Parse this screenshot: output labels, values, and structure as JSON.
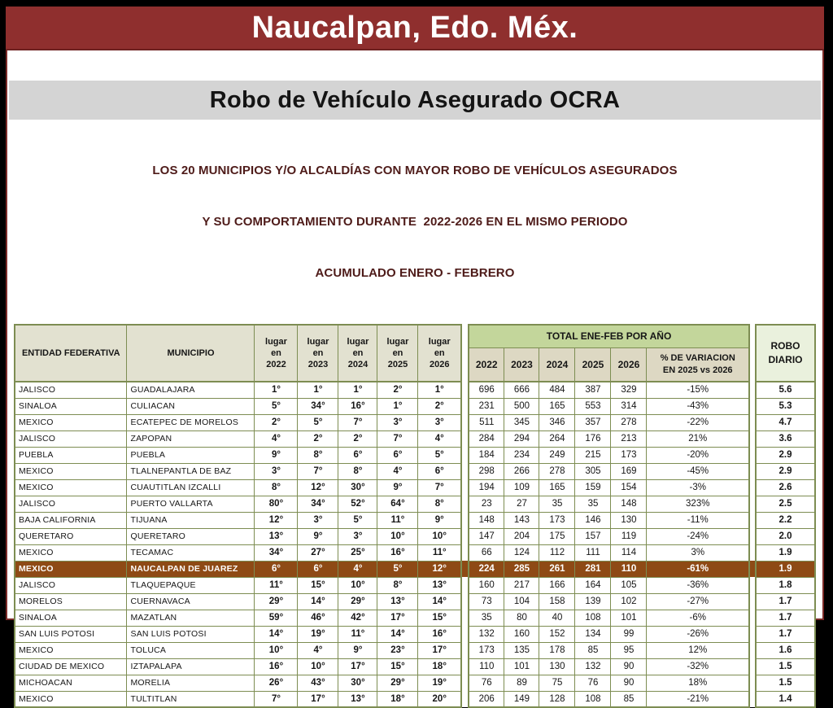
{
  "banner": {
    "title": "Naucalpan, Edo. Méx."
  },
  "section": {
    "title": "Robo de Vehículo Asegurado OCRA"
  },
  "description": {
    "line1": "LOS 20 MUNICIPIOS Y/O ALCALDÍAS CON MAYOR ROBO DE VEHÍCULOS ASEGURADOS",
    "line2": "Y SU COMPORTAMIENTO DURANTE  2022-2026 EN EL MISMO PERIODO",
    "line3": "ACUMULADO ENERO - FEBRERO"
  },
  "colors": {
    "banner_red": "#8f2f2e",
    "section_bar_gray": "#d4d4d4",
    "description_maroon": "#4e1b19",
    "table_border_olive": "#7d8d52",
    "header_beige": "#e2e1d0",
    "header_tan": "#ddd8c3",
    "header_green": "#c3d69b",
    "header_light_green": "#eaf1dd",
    "highlight_brown": "#8e4a15"
  },
  "table": {
    "years": [
      "2022",
      "2023",
      "2024",
      "2025",
      "2026"
    ],
    "headers": {
      "entidad": "ENTIDAD FEDERATIVA",
      "municipio": "MUNICIPIO",
      "lugar_word": "lugar",
      "en_word": "en",
      "total": "TOTAL ENE-FEB POR AÑO",
      "variacion_line1": "% DE VARIACION",
      "variacion_line2": "EN 2025 vs 2026",
      "robo_line1": "ROBO",
      "robo_line2": "DIARIO"
    },
    "rows": [
      {
        "entidad": "JALISCO",
        "municipio": "GUADALAJARA",
        "lugar": [
          "1°",
          "1°",
          "1°",
          "2°",
          "1°"
        ],
        "totales": [
          "696",
          "666",
          "484",
          "387",
          "329"
        ],
        "variacion": "-15%",
        "robo_diario": "5.6",
        "highlight": false
      },
      {
        "entidad": "SINALOA",
        "municipio": "CULIACAN",
        "lugar": [
          "5°",
          "34°",
          "16°",
          "1°",
          "2°"
        ],
        "totales": [
          "231",
          "500",
          "165",
          "553",
          "314"
        ],
        "variacion": "-43%",
        "robo_diario": "5.3",
        "highlight": false
      },
      {
        "entidad": "MEXICO",
        "municipio": "ECATEPEC DE MORELOS",
        "lugar": [
          "2°",
          "5°",
          "7°",
          "3°",
          "3°"
        ],
        "totales": [
          "511",
          "345",
          "346",
          "357",
          "278"
        ],
        "variacion": "-22%",
        "robo_diario": "4.7",
        "highlight": false
      },
      {
        "entidad": "JALISCO",
        "municipio": "ZAPOPAN",
        "lugar": [
          "4°",
          "2°",
          "2°",
          "7°",
          "4°"
        ],
        "totales": [
          "284",
          "294",
          "264",
          "176",
          "213"
        ],
        "variacion": "21%",
        "robo_diario": "3.6",
        "highlight": false
      },
      {
        "entidad": "PUEBLA",
        "municipio": "PUEBLA",
        "lugar": [
          "9°",
          "8°",
          "6°",
          "6°",
          "5°"
        ],
        "totales": [
          "184",
          "234",
          "249",
          "215",
          "173"
        ],
        "variacion": "-20%",
        "robo_diario": "2.9",
        "highlight": false
      },
      {
        "entidad": "MEXICO",
        "municipio": "TLALNEPANTLA DE BAZ",
        "lugar": [
          "3°",
          "7°",
          "8°",
          "4°",
          "6°"
        ],
        "totales": [
          "298",
          "266",
          "278",
          "305",
          "169"
        ],
        "variacion": "-45%",
        "robo_diario": "2.9",
        "highlight": false
      },
      {
        "entidad": "MEXICO",
        "municipio": "CUAUTITLAN IZCALLI",
        "lugar": [
          "8°",
          "12°",
          "30°",
          "9°",
          "7°"
        ],
        "totales": [
          "194",
          "109",
          "165",
          "159",
          "154"
        ],
        "variacion": "-3%",
        "robo_diario": "2.6",
        "highlight": false
      },
      {
        "entidad": "JALISCO",
        "municipio": "PUERTO VALLARTA",
        "lugar": [
          "80°",
          "34°",
          "52°",
          "64°",
          "8°"
        ],
        "totales": [
          "23",
          "27",
          "35",
          "35",
          "148"
        ],
        "variacion": "323%",
        "robo_diario": "2.5",
        "highlight": false
      },
      {
        "entidad": "BAJA CALIFORNIA",
        "municipio": "TIJUANA",
        "lugar": [
          "12°",
          "3°",
          "5°",
          "11°",
          "9°"
        ],
        "totales": [
          "148",
          "143",
          "173",
          "146",
          "130"
        ],
        "variacion": "-11%",
        "robo_diario": "2.2",
        "highlight": false
      },
      {
        "entidad": "QUERETARO",
        "municipio": "QUERETARO",
        "lugar": [
          "13°",
          "9°",
          "3°",
          "10°",
          "10°"
        ],
        "totales": [
          "147",
          "204",
          "175",
          "157",
          "119"
        ],
        "variacion": "-24%",
        "robo_diario": "2.0",
        "highlight": false
      },
      {
        "entidad": "MEXICO",
        "municipio": "TECAMAC",
        "lugar": [
          "34°",
          "27°",
          "25°",
          "16°",
          "11°"
        ],
        "totales": [
          "66",
          "124",
          "112",
          "111",
          "114"
        ],
        "variacion": "3%",
        "robo_diario": "1.9",
        "highlight": false
      },
      {
        "entidad": "MEXICO",
        "municipio": "NAUCALPAN DE JUAREZ",
        "lugar": [
          "6°",
          "6°",
          "4°",
          "5°",
          "12°"
        ],
        "totales": [
          "224",
          "285",
          "261",
          "281",
          "110"
        ],
        "variacion": "-61%",
        "robo_diario": "1.9",
        "highlight": true
      },
      {
        "entidad": "JALISCO",
        "municipio": "TLAQUEPAQUE",
        "lugar": [
          "11°",
          "15°",
          "10°",
          "8°",
          "13°"
        ],
        "totales": [
          "160",
          "217",
          "166",
          "164",
          "105"
        ],
        "variacion": "-36%",
        "robo_diario": "1.8",
        "highlight": false
      },
      {
        "entidad": "MORELOS",
        "municipio": "CUERNAVACA",
        "lugar": [
          "29°",
          "14°",
          "29°",
          "13°",
          "14°"
        ],
        "totales": [
          "73",
          "104",
          "158",
          "139",
          "102"
        ],
        "variacion": "-27%",
        "robo_diario": "1.7",
        "highlight": false
      },
      {
        "entidad": "SINALOA",
        "municipio": "MAZATLAN",
        "lugar": [
          "59°",
          "46°",
          "42°",
          "17°",
          "15°"
        ],
        "totales": [
          "35",
          "80",
          "40",
          "108",
          "101"
        ],
        "variacion": "-6%",
        "robo_diario": "1.7",
        "highlight": false
      },
      {
        "entidad": "SAN LUIS POTOSI",
        "municipio": "SAN LUIS POTOSI",
        "lugar": [
          "14°",
          "19°",
          "11°",
          "14°",
          "16°"
        ],
        "totales": [
          "132",
          "160",
          "152",
          "134",
          "99"
        ],
        "variacion": "-26%",
        "robo_diario": "1.7",
        "highlight": false
      },
      {
        "entidad": "MEXICO",
        "municipio": "TOLUCA",
        "lugar": [
          "10°",
          "4°",
          "9°",
          "23°",
          "17°"
        ],
        "totales": [
          "173",
          "135",
          "178",
          "85",
          "95"
        ],
        "variacion": "12%",
        "robo_diario": "1.6",
        "highlight": false
      },
      {
        "entidad": "CIUDAD DE MEXICO",
        "municipio": "IZTAPALAPA",
        "lugar": [
          "16°",
          "10°",
          "17°",
          "15°",
          "18°"
        ],
        "totales": [
          "110",
          "101",
          "130",
          "132",
          "90"
        ],
        "variacion": "-32%",
        "robo_diario": "1.5",
        "highlight": false
      },
      {
        "entidad": "MICHOACAN",
        "municipio": "MORELIA",
        "lugar": [
          "26°",
          "43°",
          "30°",
          "29°",
          "19°"
        ],
        "totales": [
          "76",
          "89",
          "75",
          "76",
          "90"
        ],
        "variacion": "18%",
        "robo_diario": "1.5",
        "highlight": false
      },
      {
        "entidad": "MEXICO",
        "municipio": "TULTITLAN",
        "lugar": [
          "7°",
          "17°",
          "13°",
          "18°",
          "20°"
        ],
        "totales": [
          "206",
          "149",
          "128",
          "108",
          "85"
        ],
        "variacion": "-21%",
        "robo_diario": "1.4",
        "highlight": false
      }
    ]
  }
}
